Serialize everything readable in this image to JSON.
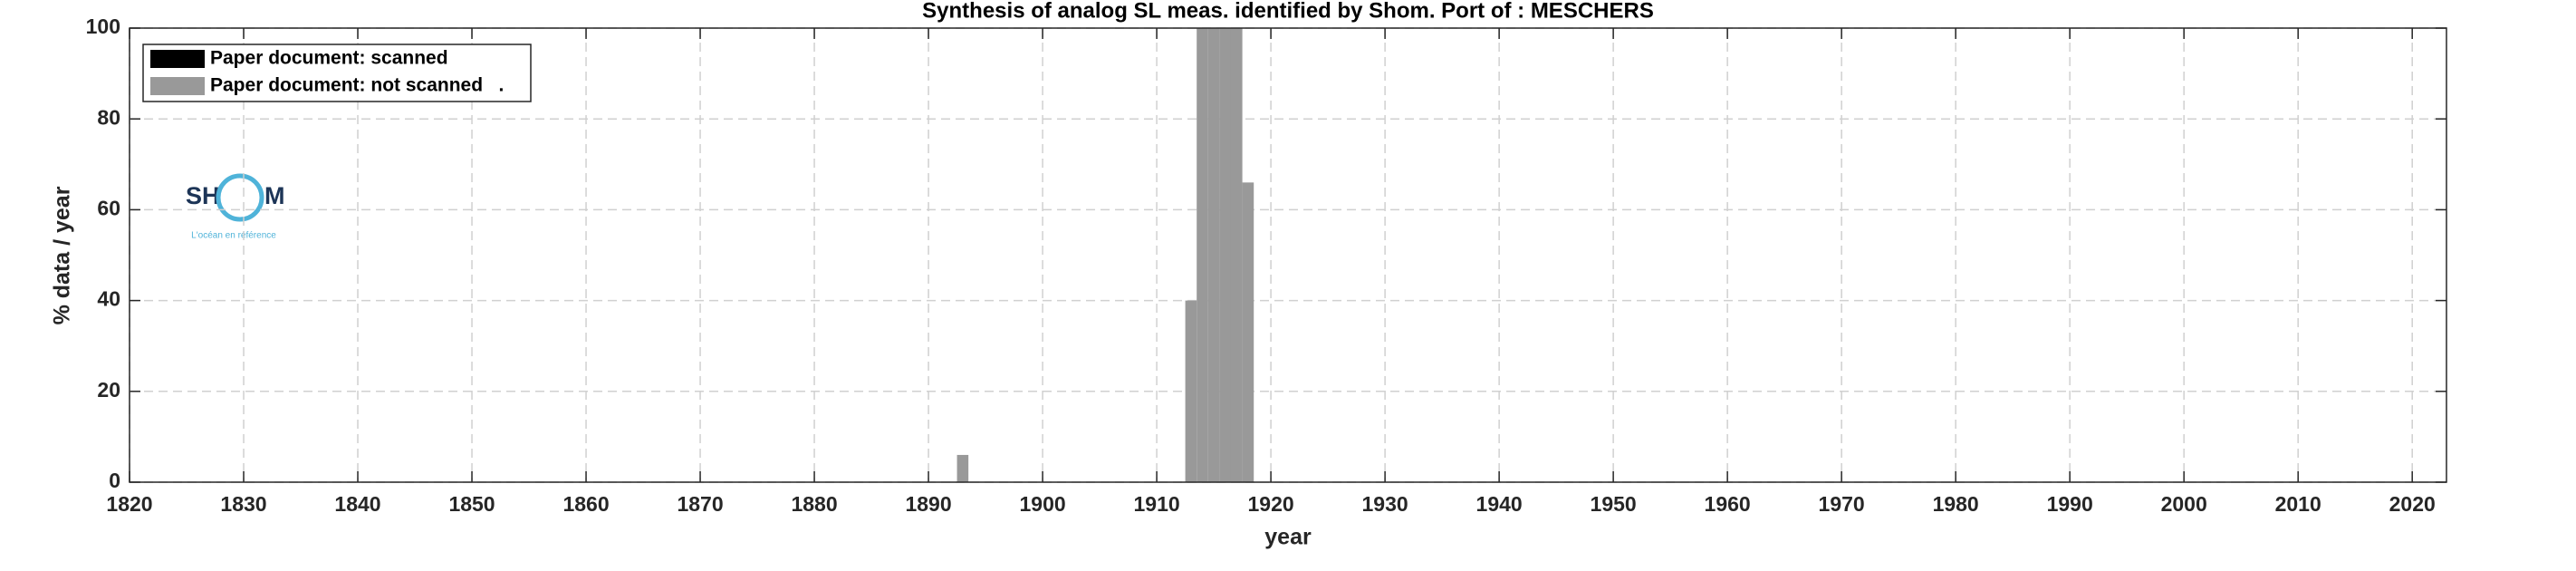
{
  "chart_data": {
    "type": "bar",
    "title": "Synthesis of analog SL meas. identified by Shom. Port of : MESCHERS",
    "x_label": "year",
    "y_label": "% data / year",
    "x": [
      1893,
      1913,
      1914,
      1915,
      1916,
      1917,
      1918
    ],
    "series": [
      {
        "name": "Paper document: scanned",
        "color": "#000000",
        "values": [
          0,
          0,
          0,
          0,
          0,
          0,
          0
        ]
      },
      {
        "name": "Paper document: not scanned   .",
        "color": "#999999",
        "values": [
          6,
          40,
          100,
          100,
          100,
          100,
          66
        ]
      }
    ],
    "xlim": [
      1820,
      2023
    ],
    "ylim": [
      0,
      100
    ],
    "xticks": [
      1820,
      1830,
      1840,
      1850,
      1860,
      1870,
      1880,
      1890,
      1900,
      1910,
      1920,
      1930,
      1940,
      1950,
      1960,
      1970,
      1980,
      1990,
      2000,
      2010,
      2020
    ],
    "yticks": [
      0,
      20,
      40,
      60,
      80,
      100
    ],
    "grid": true,
    "legend": "upper left"
  },
  "logo": {
    "left": "SH",
    "right": "M",
    "tagline": "L'océan en référence"
  }
}
